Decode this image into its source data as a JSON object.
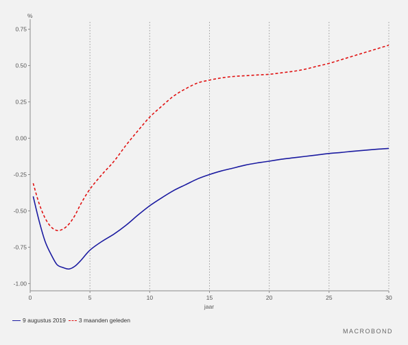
{
  "brand": "MACROBOND",
  "legend": {
    "series1": "9 augustus 2019",
    "series2": "3 maanden geleden"
  },
  "chart_data": {
    "type": "line",
    "title": "",
    "xlabel": "jaar",
    "ylabel": "%",
    "xlim": [
      0,
      30
    ],
    "ylim": [
      -1.05,
      0.8
    ],
    "xticks": [
      0,
      5,
      10,
      15,
      20,
      25,
      30
    ],
    "xtick_labels": [
      "0",
      "5",
      "10",
      "15",
      "20",
      "25",
      "30"
    ],
    "yticks": [
      0.75,
      0.5,
      0.25,
      0.0,
      -0.25,
      -0.5,
      -0.75,
      -1.0
    ],
    "ytick_labels": [
      "0.75",
      "0.50",
      "0.25",
      "0.00",
      "-0.25",
      "-0.50",
      "-0.75",
      "-1.00"
    ],
    "grid": "vertical dotted at x ticks",
    "legend_position": "bottom-left",
    "series": [
      {
        "name": "9 augustus 2019",
        "color": "#1a1aa0",
        "style": "solid",
        "x": [
          0.25,
          0.75,
          1.25,
          1.75,
          2.25,
          2.75,
          3.25,
          3.75,
          4.25,
          5,
          6,
          7,
          8,
          9,
          10,
          11,
          12,
          13,
          14,
          15,
          16,
          17,
          18,
          19,
          20,
          21,
          22,
          23,
          24,
          25,
          26,
          27,
          28,
          29,
          30
        ],
        "y": [
          -0.4,
          -0.57,
          -0.71,
          -0.8,
          -0.87,
          -0.89,
          -0.9,
          -0.88,
          -0.84,
          -0.77,
          -0.71,
          -0.66,
          -0.6,
          -0.53,
          -0.465,
          -0.41,
          -0.36,
          -0.32,
          -0.28,
          -0.25,
          -0.225,
          -0.205,
          -0.185,
          -0.17,
          -0.158,
          -0.145,
          -0.135,
          -0.125,
          -0.115,
          -0.105,
          -0.098,
          -0.09,
          -0.083,
          -0.076,
          -0.07
        ]
      },
      {
        "name": "3 maanden geleden",
        "color": "#e01010",
        "style": "dashed",
        "x": [
          0.25,
          0.75,
          1.25,
          1.75,
          2.25,
          2.75,
          3.25,
          3.75,
          4.25,
          5,
          6,
          7,
          8,
          9,
          10,
          11,
          12,
          13,
          14,
          15,
          16,
          17,
          18,
          19,
          20,
          21,
          22,
          23,
          24,
          25,
          26,
          27,
          28,
          29,
          30
        ],
        "y": [
          -0.31,
          -0.45,
          -0.55,
          -0.61,
          -0.635,
          -0.625,
          -0.59,
          -0.53,
          -0.45,
          -0.35,
          -0.25,
          -0.16,
          -0.05,
          0.05,
          0.145,
          0.22,
          0.29,
          0.34,
          0.38,
          0.4,
          0.415,
          0.425,
          0.43,
          0.435,
          0.44,
          0.45,
          0.46,
          0.475,
          0.495,
          0.515,
          0.54,
          0.565,
          0.59,
          0.615,
          0.64
        ]
      }
    ]
  }
}
